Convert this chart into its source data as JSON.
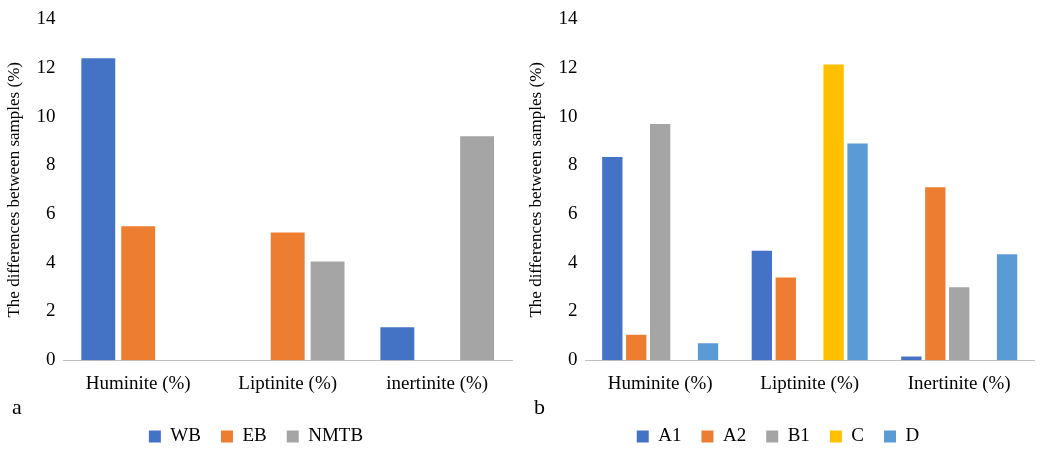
{
  "chart_data": [
    {
      "type": "bar",
      "ylabel": "The differences between samples (%)",
      "categories": [
        "Huminite (%)",
        "Liptinite (%)",
        "inertinite (%)"
      ],
      "series": [
        {
          "name": "WB",
          "color": "#4472c4",
          "values": [
            12.4,
            0,
            1.35
          ]
        },
        {
          "name": "EB",
          "color": "#ed7d31",
          "values": [
            5.5,
            5.25,
            0
          ]
        },
        {
          "name": "NMTB",
          "color": "#a5a5a5",
          "values": [
            0,
            4.05,
            9.2
          ]
        }
      ],
      "ylim": [
        0,
        14
      ],
      "yticks": [
        0,
        2,
        4,
        6,
        8,
        10,
        12,
        14
      ],
      "grid": false,
      "legend": "bottom",
      "annotations": [
        "a"
      ]
    },
    {
      "type": "bar",
      "ylabel": "The differences between samples (%)",
      "categories": [
        "Huminite (%)",
        "Liptinite (%)",
        "Inertinite (%)"
      ],
      "series": [
        {
          "name": "A1",
          "color": "#4472c4",
          "values": [
            8.35,
            4.5,
            0.15
          ]
        },
        {
          "name": "A2",
          "color": "#ed7d31",
          "values": [
            1.05,
            3.4,
            7.1
          ]
        },
        {
          "name": "B1",
          "color": "#a5a5a5",
          "values": [
            9.7,
            0,
            3.0
          ]
        },
        {
          "name": "C",
          "color": "#ffc000",
          "values": [
            0,
            12.15,
            0
          ]
        },
        {
          "name": "D",
          "color": "#5b9bd5",
          "values": [
            0.7,
            8.9,
            4.35
          ]
        }
      ],
      "ylim": [
        0,
        14
      ],
      "yticks": [
        0,
        2,
        4,
        6,
        8,
        10,
        12,
        14
      ],
      "grid": false,
      "legend": "bottom",
      "annotations": [
        "b"
      ]
    }
  ]
}
